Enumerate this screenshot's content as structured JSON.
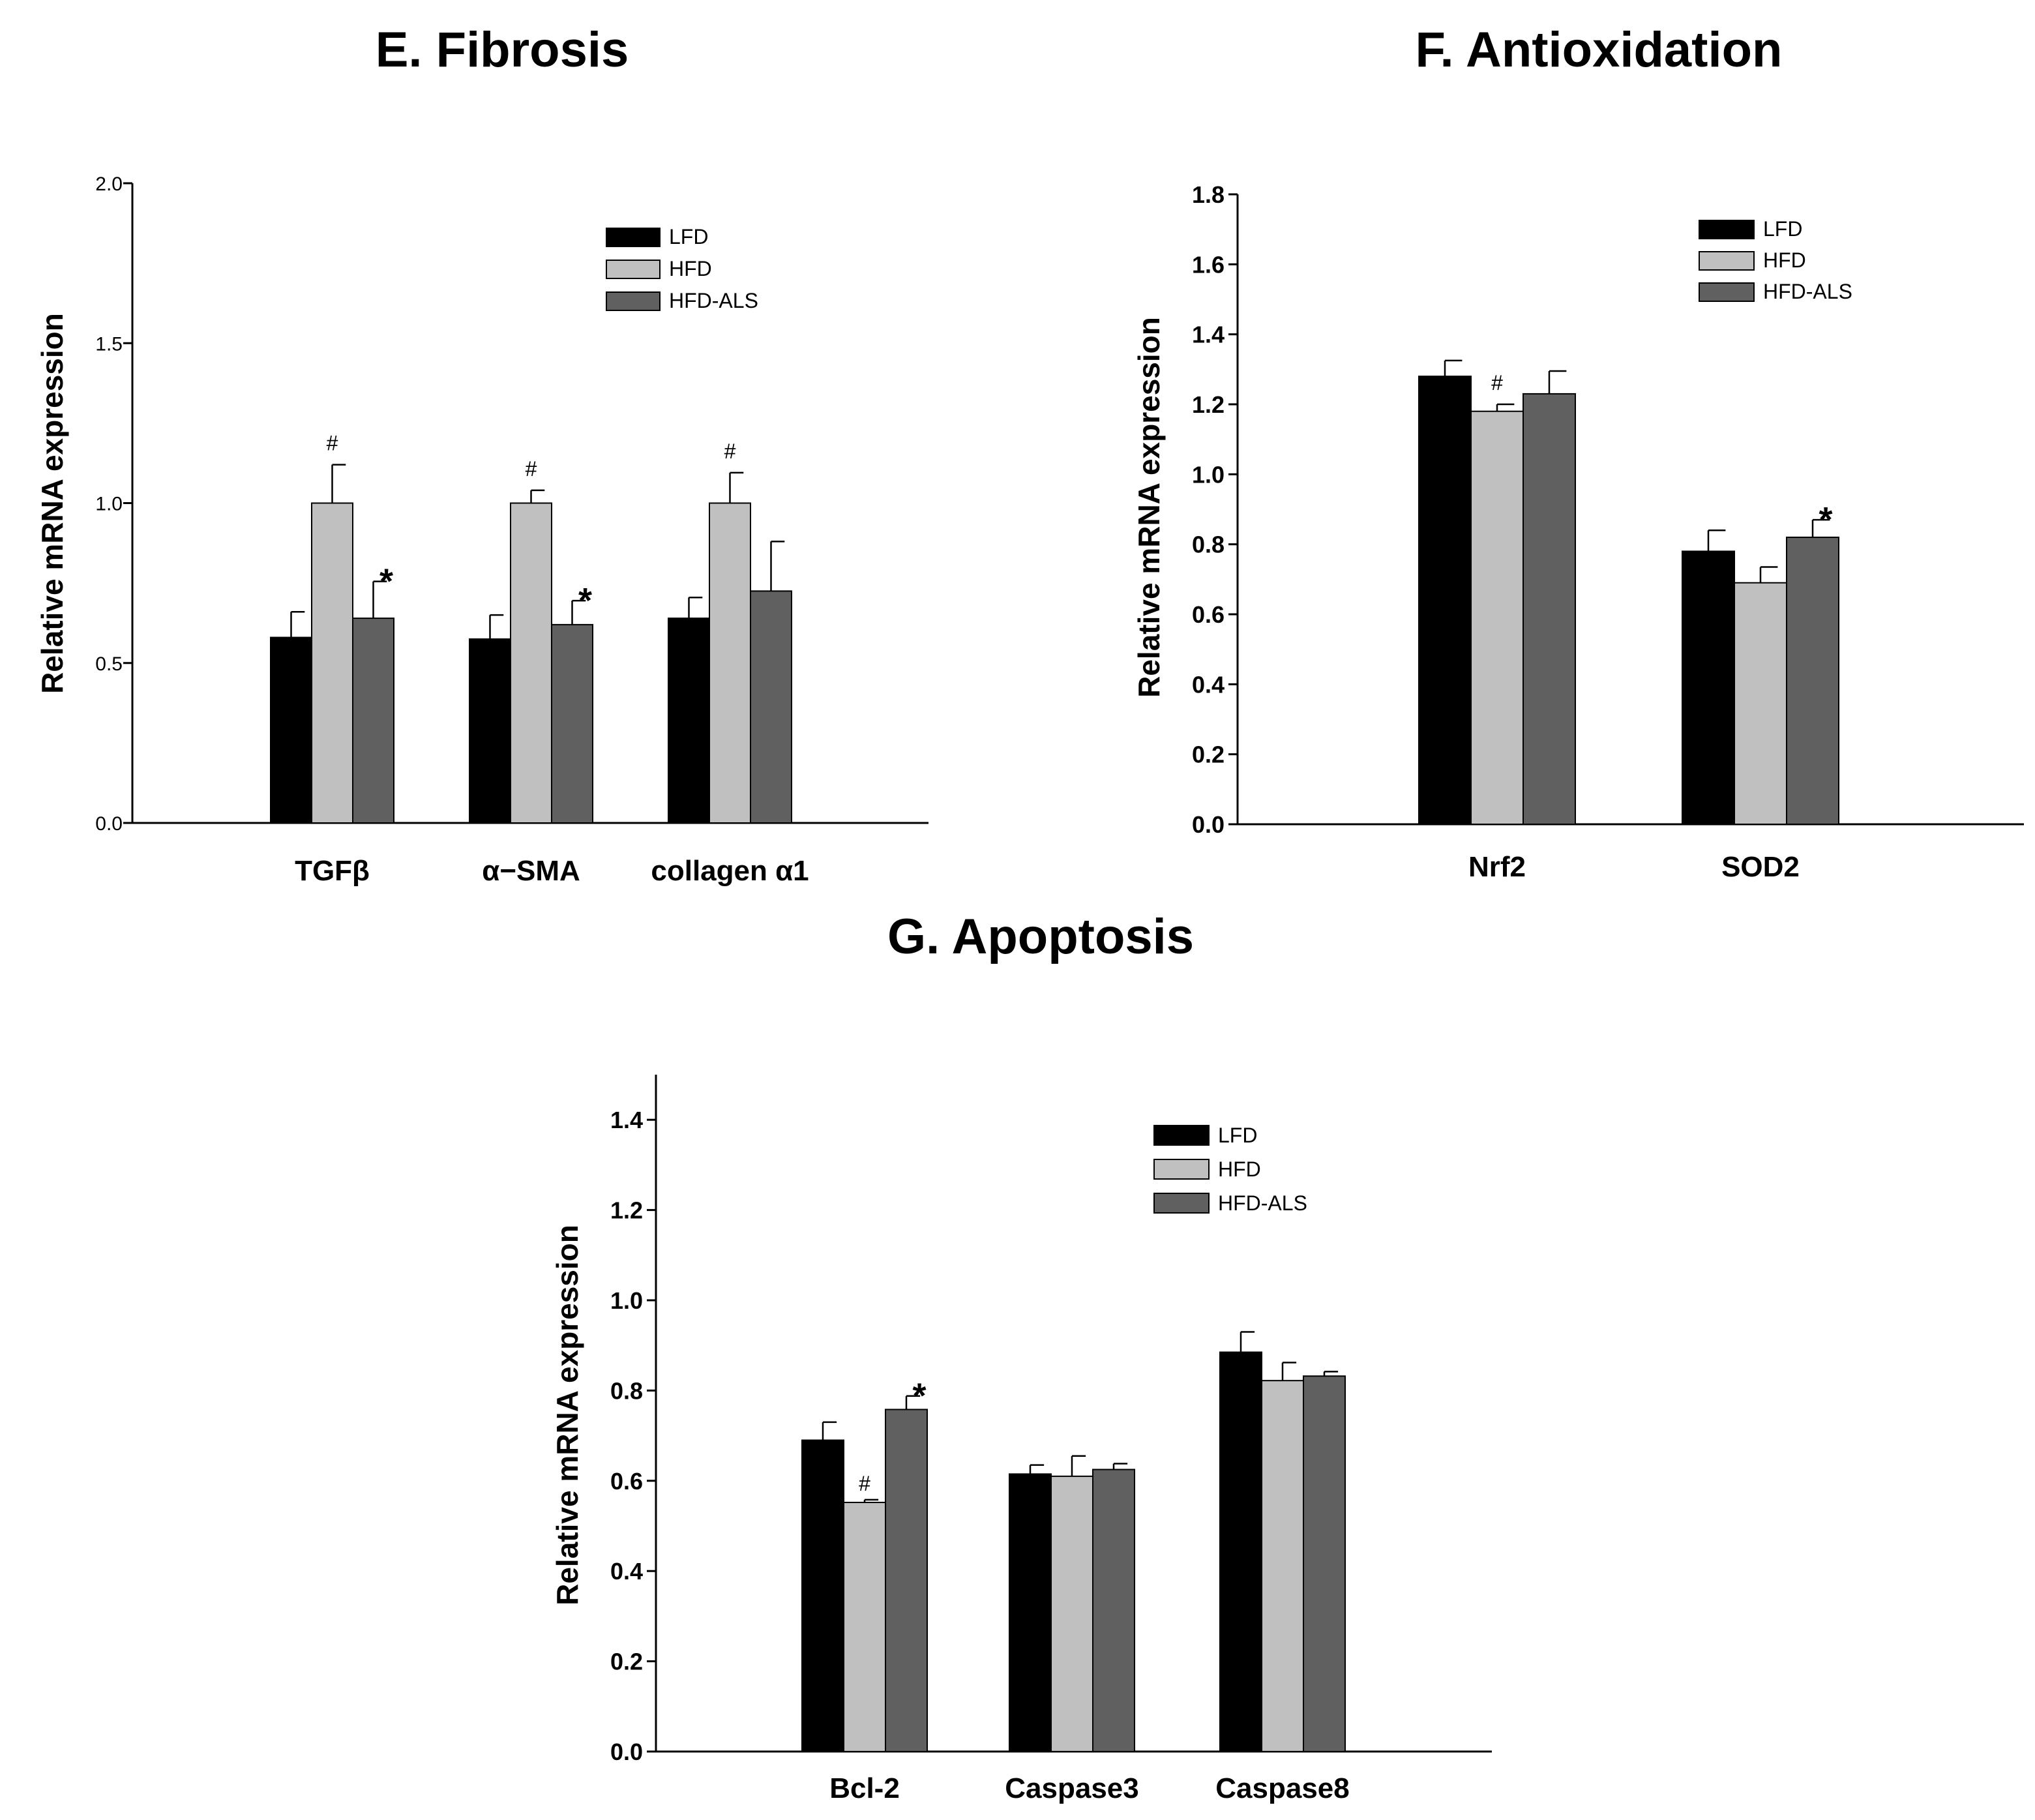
{
  "chart_data": [
    {
      "type": "bar",
      "panel": "E",
      "title": "E. Fibrosis",
      "ylabel": "Relative mRNA expression",
      "xlabel": "",
      "ylim": [
        0,
        2.0
      ],
      "yticks": [
        "0.0",
        "0.5",
        "1.0",
        "1.5",
        "2.0"
      ],
      "categories": [
        "TGFβ",
        "α−SMA",
        "collagen α1"
      ],
      "series": [
        {
          "name": "LFD",
          "color": "#000000",
          "values": [
            0.58,
            0.575,
            0.64
          ],
          "errors": [
            0.08,
            0.075,
            0.065
          ]
        },
        {
          "name": "HFD",
          "color": "#c0c0c0",
          "values": [
            1.0,
            1.0,
            1.0
          ],
          "errors": [
            0.12,
            0.04,
            0.095
          ]
        },
        {
          "name": "HFD-ALS",
          "color": "#606060",
          "values": [
            0.64,
            0.62,
            0.725
          ],
          "errors": [
            0.115,
            0.075,
            0.155
          ]
        }
      ],
      "annotations": [
        {
          "text": "#",
          "category": 0,
          "series": 1
        },
        {
          "text": "*",
          "category": 0,
          "series": 2
        },
        {
          "text": "#",
          "category": 1,
          "series": 1
        },
        {
          "text": "*",
          "category": 1,
          "series": 2
        },
        {
          "text": "#",
          "category": 2,
          "series": 1
        }
      ],
      "legend_position": "top-right",
      "grid": false
    },
    {
      "type": "bar",
      "panel": "F",
      "title": "F. Antioxidation",
      "ylabel": "Relative mRNA expression",
      "xlabel": "",
      "ylim": [
        0,
        1.8
      ],
      "yticks": [
        "0.0",
        "0.2",
        "0.4",
        "0.6",
        "0.8",
        "1.0",
        "1.2",
        "1.4",
        "1.6",
        "1.8"
      ],
      "categories": [
        "Nrf2",
        "SOD2"
      ],
      "series": [
        {
          "name": "LFD",
          "color": "#000000",
          "values": [
            1.28,
            0.78
          ],
          "errors": [
            0.045,
            0.06
          ]
        },
        {
          "name": "HFD",
          "color": "#c0c0c0",
          "values": [
            1.18,
            0.69
          ],
          "errors": [
            0.02,
            0.045
          ]
        },
        {
          "name": "HFD-ALS",
          "color": "#606060",
          "values": [
            1.23,
            0.82
          ],
          "errors": [
            0.065,
            0.05
          ]
        }
      ],
      "annotations": [
        {
          "text": "#",
          "category": 0,
          "series": 1
        },
        {
          "text": "*",
          "category": 1,
          "series": 2
        }
      ],
      "legend_position": "top-right",
      "grid": false
    },
    {
      "type": "bar",
      "panel": "G",
      "title": "G. Apoptosis",
      "ylabel": "Relative mRNA expression",
      "xlabel": "",
      "ylim": [
        0,
        1.5
      ],
      "yticks": [
        "0.0",
        "0.2",
        "0.4",
        "0.6",
        "0.8",
        "1.0",
        "1.2",
        "1.4"
      ],
      "categories": [
        "Bcl-2",
        "Caspase3",
        "Caspase8"
      ],
      "series": [
        {
          "name": "LFD",
          "color": "#000000",
          "values": [
            0.69,
            0.615,
            0.885
          ],
          "errors": [
            0.04,
            0.02,
            0.045
          ]
        },
        {
          "name": "HFD",
          "color": "#c0c0c0",
          "values": [
            0.552,
            0.61,
            0.822
          ],
          "errors": [
            0.006,
            0.045,
            0.04
          ]
        },
        {
          "name": "HFD-ALS",
          "color": "#606060",
          "values": [
            0.758,
            0.625,
            0.832
          ],
          "errors": [
            0.03,
            0.013,
            0.01
          ]
        }
      ],
      "annotations": [
        {
          "text": "#",
          "category": 0,
          "series": 1,
          "placement": "above-bar"
        },
        {
          "text": "*",
          "category": 0,
          "series": 2
        }
      ],
      "legend_position": "top-right",
      "grid": false
    }
  ]
}
